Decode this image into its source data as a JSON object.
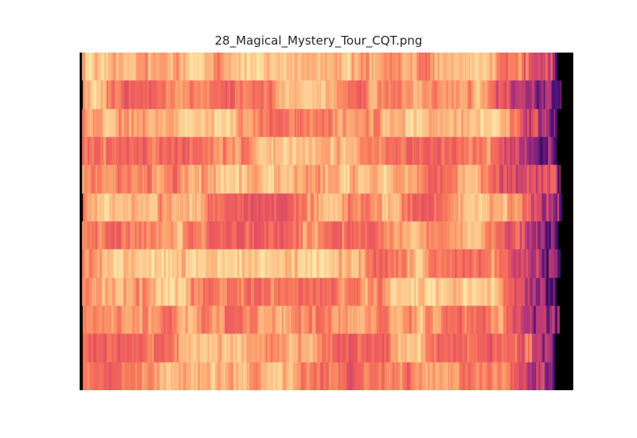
{
  "chart_data": {
    "type": "heatmap",
    "title": "28_Magical_Mystery_Tour_CQT.png",
    "xlabel": "",
    "ylabel": "",
    "colormap": "magma",
    "axes_visible": false,
    "grid": false,
    "legend": "none",
    "rows": 12,
    "background_color": "#000000",
    "description_of_pattern": "12 horizontal bands of constant-Q spectrogram strips; dense vertical stripes in orange/peach tones, darkening to purple/black near right end",
    "dominant_colors": [
      "#f8765c",
      "#fca772",
      "#fdc68c",
      "#fde5a7",
      "#e9555f",
      "#b73779",
      "#6b1d81",
      "#000004"
    ]
  }
}
